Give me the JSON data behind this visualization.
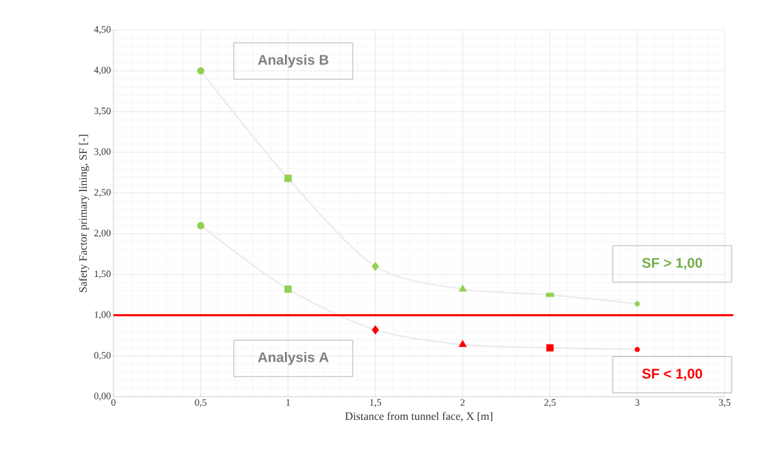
{
  "chart_data": {
    "type": "scatter",
    "xlabel": "Distance from tunnel face, X [m]",
    "ylabel": "Safety Factor primary lining, SF [-]",
    "xlim": [
      0,
      3.5
    ],
    "ylim": [
      0,
      4.5
    ],
    "xticks": [
      0,
      {
        "value": 0.5,
        "label": "0,5"
      },
      1,
      {
        "value": 1.5,
        "label": "1,5"
      },
      2,
      {
        "value": 2.5,
        "label": "2,5"
      },
      3,
      {
        "value": 3.5,
        "label": "3,5"
      }
    ],
    "yticks": [
      {
        "value": 0,
        "label": "0,00"
      },
      {
        "value": 0.5,
        "label": "0,50"
      },
      {
        "value": 1,
        "label": "1,00"
      },
      {
        "value": 1.5,
        "label": "1,50"
      },
      {
        "value": 2,
        "label": "2,00"
      },
      {
        "value": 2.5,
        "label": "2,50"
      },
      {
        "value": 3,
        "label": "3,00"
      },
      {
        "value": 3.5,
        "label": "3,50"
      },
      {
        "value": 4,
        "label": "4,00"
      },
      {
        "value": 4.5,
        "label": "4,50"
      }
    ],
    "grid": true,
    "series": [
      {
        "type": "line",
        "color": "#ebebeb",
        "marker": "none",
        "x": [
          0.5,
          1,
          1.5,
          2,
          2.5,
          3
        ],
        "values": [
          4.0,
          2.68,
          1.6,
          1.32,
          1.25,
          1.14
        ]
      },
      {
        "type": "line",
        "color": "#ebebeb",
        "marker": "none",
        "x": [
          0.5,
          1,
          1.5,
          2,
          2.5,
          3
        ],
        "values": [
          2.1,
          1.32,
          0.82,
          0.64,
          0.6,
          0.58
        ]
      },
      {
        "marker": "circle",
        "x": [
          0.5,
          0.5
        ],
        "values": [
          4.0,
          2.1
        ],
        "colors": [
          "#92d050",
          "#92d050"
        ]
      },
      {
        "marker": "square",
        "x": [
          1,
          1
        ],
        "values": [
          2.68,
          1.32
        ],
        "colors": [
          "#92d050",
          "#92d050"
        ]
      },
      {
        "marker": "diamond",
        "x": [
          1.5,
          1.5
        ],
        "values": [
          1.6,
          0.82
        ],
        "colors": [
          "#92d050",
          "#ff0000"
        ]
      },
      {
        "marker": "triangle",
        "x": [
          2,
          2
        ],
        "values": [
          1.32,
          0.64
        ],
        "colors": [
          "#92d050",
          "#ff0000"
        ]
      },
      {
        "x": [
          2.5,
          2.5
        ],
        "values": [
          1.25,
          0.6
        ],
        "colors": [
          "#92d050",
          "#ff0000"
        ]
      },
      {
        "marker": "circle",
        "x": [
          3,
          3
        ],
        "values": [
          1.14,
          0.58
        ],
        "colors": [
          "#92d050",
          "#ff0000"
        ]
      }
    ],
    "ref_lines": [
      {
        "axis": "y",
        "value": 1,
        "color": "#ff0000"
      }
    ],
    "annotations": [
      "Analysis B",
      "Analysis A",
      "SF > 1,00",
      "SF < 1,00"
    ]
  }
}
